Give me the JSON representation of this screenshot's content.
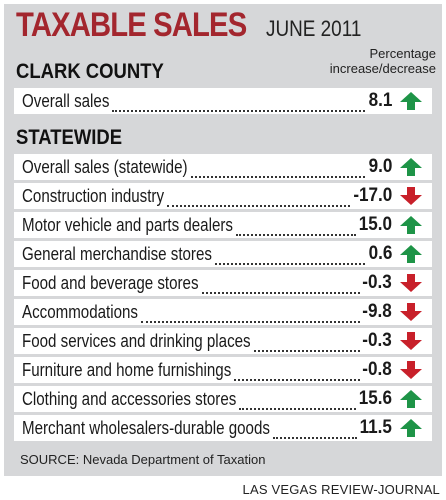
{
  "title": "TAXABLE SALES",
  "subtitle": "JUNE 2011",
  "pct_note_line1": "Percentage",
  "pct_note_line2": "increase/decrease",
  "clark": {
    "heading": "CLARK COUNTY",
    "rows": [
      {
        "label": "Overall sales",
        "value": "8.1",
        "direction": "up"
      }
    ]
  },
  "statewide": {
    "heading": "STATEWIDE",
    "rows": [
      {
        "label": "Overall sales (statewide)",
        "value": "9.0",
        "direction": "up"
      },
      {
        "label": "Construction industry",
        "value": "-17.0",
        "direction": "down"
      },
      {
        "label": "Motor vehicle and parts dealers",
        "value": "15.0",
        "direction": "up"
      },
      {
        "label": "General merchandise stores",
        "value": "0.6",
        "direction": "up"
      },
      {
        "label": "Food and beverage stores",
        "value": "-0.3",
        "direction": "down"
      },
      {
        "label": "Accommodations",
        "value": "-9.8",
        "direction": "down"
      },
      {
        "label": "Food services and drinking places",
        "value": "-0.3",
        "direction": "down"
      },
      {
        "label": "Furniture and home furnishings",
        "value": "-0.8",
        "direction": "down"
      },
      {
        "label": "Clothing and accessories stores",
        "value": "15.6",
        "direction": "up"
      },
      {
        "label": "Merchant wholesalers-durable goods",
        "value": "11.5",
        "direction": "up"
      }
    ]
  },
  "source": "SOURCE: Nevada Department of Taxation",
  "credit": "LAS VEGAS REVIEW-JOURNAL",
  "colors": {
    "up": "#1e9447",
    "down": "#c8202a",
    "title": "#a3262e",
    "panel": "#d6d7d9"
  },
  "icons": {
    "up": "green-up-arrow-icon",
    "down": "red-down-arrow-icon"
  }
}
